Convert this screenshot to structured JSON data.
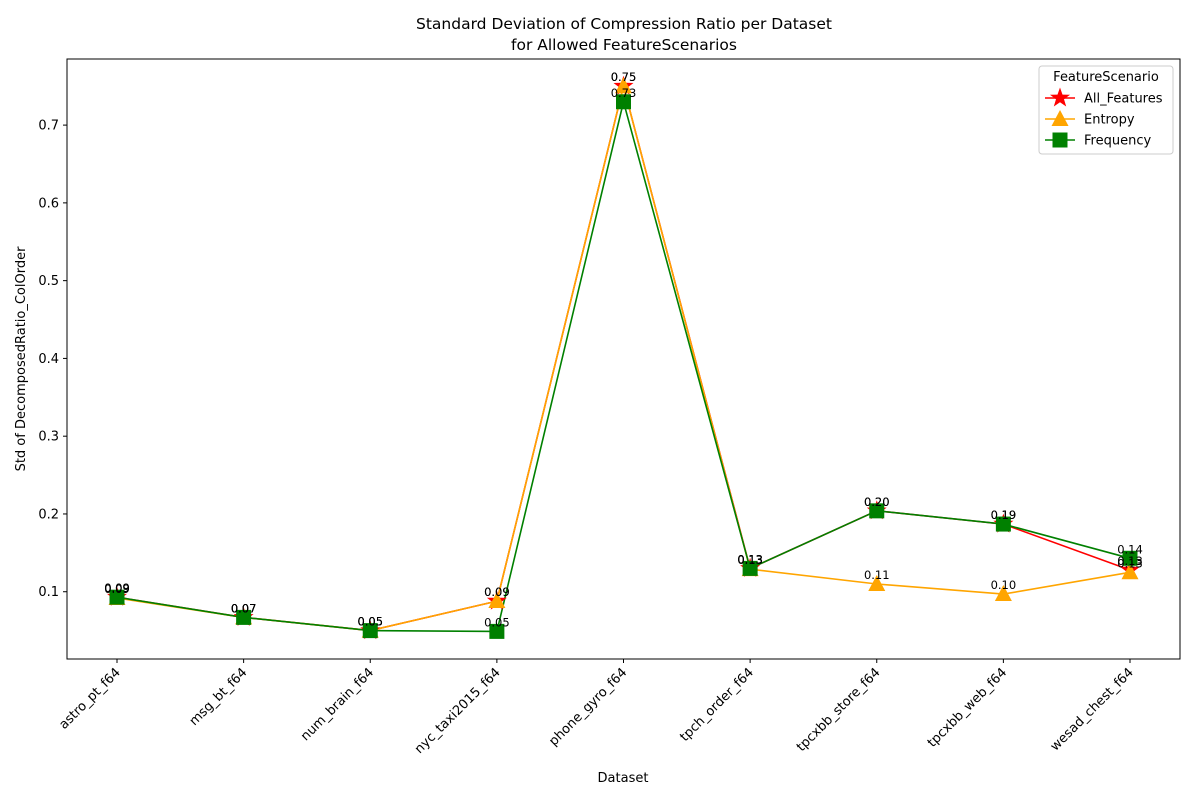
{
  "chart_data": {
    "type": "line",
    "title": "Standard Deviation of Compression Ratio per Dataset",
    "subtitle": "for Allowed FeatureScenarios",
    "xlabel": "Dataset",
    "ylabel": "Std of DecomposedRatio_ColOrder",
    "categories": [
      "astro_pt_f64",
      "msg_bt_f64",
      "num_brain_f64",
      "nyc_taxi2015_f64",
      "phone_gyro_f64",
      "tpch_order_f64",
      "tpcxbb_store_f64",
      "tpcxbb_web_f64",
      "wesad_chest_f64"
    ],
    "ylim": [
      0.0135,
      0.785
    ],
    "yticks": [
      0.1,
      0.2,
      0.3,
      0.4,
      0.5,
      0.6,
      0.7
    ],
    "ytick_labels": [
      "0.1",
      "0.2",
      "0.3",
      "0.4",
      "0.5",
      "0.6",
      "0.7"
    ],
    "grid": false,
    "legend": {
      "title": "FeatureScenario",
      "placement": "top-right"
    },
    "series": [
      {
        "name": "All_Features",
        "color": "#ff0000",
        "marker": "star",
        "values": [
          0.093,
          0.067,
          0.05,
          0.088,
          0.75,
          0.13,
          0.204,
          0.187,
          0.128
        ],
        "labels": [
          "0.09",
          "0.07",
          "0.05",
          "0.09",
          "0.75",
          "0.13",
          "0.20",
          "0.19",
          "0.13"
        ]
      },
      {
        "name": "Entropy",
        "color": "#ffa500",
        "marker": "triangle",
        "values": [
          0.092,
          0.067,
          0.05,
          0.088,
          0.75,
          0.129,
          0.11,
          0.097,
          0.125
        ],
        "labels": [
          "0.09",
          "0.07",
          "0.05",
          "0.09",
          "0.75",
          "0.13",
          "0.11",
          "0.10",
          "0.13"
        ]
      },
      {
        "name": "Frequency",
        "color": "#008000",
        "marker": "square",
        "values": [
          0.093,
          0.067,
          0.05,
          0.049,
          0.73,
          0.13,
          0.204,
          0.187,
          0.143
        ],
        "labels": [
          "0.09",
          "0.07",
          "0.05",
          "0.05",
          "0.73",
          "0.13",
          "0.20",
          "0.19",
          "0.14"
        ]
      }
    ]
  }
}
